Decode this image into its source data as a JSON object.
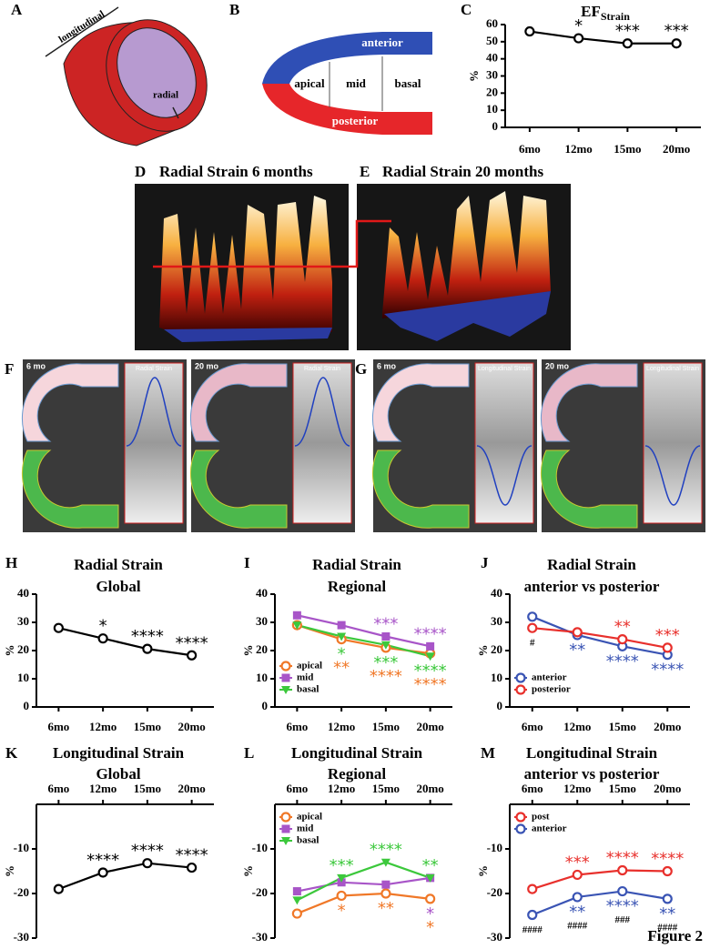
{
  "figure_label": "Figure 2",
  "diagrams": {
    "A": {
      "label": "A",
      "longitudinal": "longitudinal",
      "radial": "radial"
    },
    "B": {
      "label": "B",
      "anterior": "anterior",
      "apical": "apical",
      "mid": "mid",
      "basal": "basal",
      "posterior": "posterior"
    }
  },
  "images": {
    "D": {
      "label": "D",
      "title": "Radial Strain 6 months"
    },
    "E": {
      "label": "E",
      "title": "Radial Strain 20 months"
    },
    "F": {
      "label": "F",
      "panels": [
        {
          "time": "6 mo",
          "trace_title": "Radial Strain"
        },
        {
          "time": "20 mo",
          "trace_title": "Radial Strain"
        }
      ]
    },
    "G": {
      "label": "G",
      "panels": [
        {
          "time": "6 mo",
          "trace_title": "Longitudinal Strain"
        },
        {
          "time": "20 mo",
          "trace_title": "Longitudinal Strain"
        }
      ]
    }
  },
  "chart_data": [
    {
      "type": "line",
      "panel_label": "C",
      "title": [
        "EF"
      ],
      "title_subscript": "Strain",
      "ylabel": "%",
      "categories": [
        "6mo",
        "12mo",
        "15mo",
        "20mo"
      ],
      "ylim": [
        0,
        60
      ],
      "yticks": [
        0,
        10,
        20,
        30,
        40,
        50,
        60
      ],
      "x_axis_position": "bottom",
      "series": [
        {
          "name": "EF",
          "color": "#000000",
          "marker": "circle",
          "values": [
            56,
            52,
            49,
            49
          ],
          "annotations": [
            null,
            "*",
            "***",
            "***"
          ],
          "annotation_position": "above"
        }
      ]
    },
    {
      "type": "line",
      "panel_label": "H",
      "title": [
        "Radial Strain",
        "Global"
      ],
      "ylabel": "%",
      "categories": [
        "6mo",
        "12mo",
        "15mo",
        "20mo"
      ],
      "ylim": [
        0,
        40
      ],
      "yticks": [
        0,
        10,
        20,
        30,
        40
      ],
      "x_axis_position": "bottom",
      "series": [
        {
          "name": "global",
          "color": "#000000",
          "marker": "circle",
          "values": [
            28,
            24.3,
            20.6,
            18.3
          ],
          "annotations": [
            null,
            "*",
            "****",
            "****"
          ],
          "annotation_position": "above"
        }
      ]
    },
    {
      "type": "line",
      "panel_label": "I",
      "title": [
        "Radial Strain",
        "Regional"
      ],
      "ylabel": "%",
      "categories": [
        "6mo",
        "12mo",
        "15mo",
        "20mo"
      ],
      "ylim": [
        0,
        40
      ],
      "yticks": [
        0,
        10,
        20,
        30,
        40
      ],
      "x_axis_position": "bottom",
      "legend": "lower left",
      "series": [
        {
          "name": "apical",
          "color": "#f07828",
          "marker": "circle",
          "values": [
            29,
            24,
            21,
            19
          ],
          "annotations": [
            null,
            "**",
            "****",
            "****"
          ],
          "annotation_position": "below"
        },
        {
          "name": "mid",
          "color": "#a855c8",
          "marker": "square",
          "values": [
            32.5,
            29,
            25,
            21.5
          ],
          "annotations": [
            null,
            null,
            "***",
            "****"
          ],
          "annotation_position": "above"
        },
        {
          "name": "basal",
          "color": "#3cc83c",
          "marker": "triangle",
          "values": [
            29,
            25,
            22,
            18
          ],
          "annotations": [
            null,
            "*",
            "***",
            "****"
          ],
          "annotation_position": "below"
        }
      ]
    },
    {
      "type": "line",
      "panel_label": "J",
      "title": [
        "Radial Strain",
        "anterior vs posterior"
      ],
      "ylabel": "%",
      "categories": [
        "6mo",
        "12mo",
        "15mo",
        "20mo"
      ],
      "ylim": [
        0,
        40
      ],
      "yticks": [
        0,
        10,
        20,
        30,
        40
      ],
      "x_axis_position": "bottom",
      "legend": "lower left",
      "series": [
        {
          "name": "anterior",
          "color": "#3a54b4",
          "marker": "circle",
          "values": [
            32,
            25.5,
            21.5,
            18.5
          ],
          "annotations": [
            null,
            "**",
            "****",
            "****"
          ],
          "annotation_position": "below"
        },
        {
          "name": "posterior",
          "color": "#e8302c",
          "marker": "circle",
          "values": [
            28,
            26.5,
            24,
            21
          ],
          "annotations": [
            null,
            null,
            "**",
            "***"
          ],
          "annotation_position": "above"
        }
      ],
      "group_annotations": [
        "#",
        null,
        null,
        null
      ]
    },
    {
      "type": "line",
      "panel_label": "K",
      "title": [
        "Longitudinal Strain",
        "Global"
      ],
      "ylabel": "%",
      "categories": [
        "6mo",
        "12mo",
        "15mo",
        "20mo"
      ],
      "ylim": [
        -30,
        0
      ],
      "yticks": [
        -30,
        -20,
        -10
      ],
      "x_axis_position": "top",
      "series": [
        {
          "name": "global",
          "color": "#000000",
          "marker": "circle",
          "values": [
            -19,
            -15.3,
            -13.2,
            -14.2
          ],
          "annotations": [
            null,
            "****",
            "****",
            "****"
          ],
          "annotation_position": "above"
        }
      ]
    },
    {
      "type": "line",
      "panel_label": "L",
      "title": [
        "Longitudinal Strain",
        "Regional"
      ],
      "ylabel": "%",
      "categories": [
        "6mo",
        "12mo",
        "15mo",
        "20mo"
      ],
      "ylim": [
        -30,
        0
      ],
      "yticks": [
        -30,
        -20,
        -10
      ],
      "x_axis_position": "top",
      "legend": "upper left",
      "series": [
        {
          "name": "apical",
          "color": "#f07828",
          "marker": "circle",
          "values": [
            -24.5,
            -20.5,
            -20,
            -21.2
          ],
          "annotations": [
            null,
            "*",
            "**",
            "*"
          ],
          "annotation_position": "below"
        },
        {
          "name": "mid",
          "color": "#a855c8",
          "marker": "square",
          "values": [
            -19.5,
            -17.5,
            -18,
            -16.5
          ],
          "annotations": [
            null,
            null,
            null,
            "*"
          ],
          "annotation_position": "below"
        },
        {
          "name": "basal",
          "color": "#3cc83c",
          "marker": "triangle",
          "values": [
            -21.5,
            -16.5,
            -13,
            -16.5
          ],
          "annotations": [
            null,
            "***",
            "****",
            "**"
          ],
          "annotation_position": "above"
        }
      ]
    },
    {
      "type": "line",
      "panel_label": "M",
      "title": [
        "Longitudinal Strain",
        "anterior vs posterior"
      ],
      "ylabel": "%",
      "categories": [
        "6mo",
        "12mo",
        "15mo",
        "20mo"
      ],
      "ylim": [
        -30,
        0
      ],
      "yticks": [
        -30,
        -20,
        -10
      ],
      "x_axis_position": "top",
      "legend": "upper left",
      "series": [
        {
          "name": "post",
          "color": "#e8302c",
          "marker": "circle",
          "values": [
            -19,
            -15.8,
            -14.8,
            -15
          ],
          "annotations": [
            null,
            "***",
            "****",
            "****"
          ],
          "annotation_position": "above"
        },
        {
          "name": "anterior",
          "color": "#3a54b4",
          "marker": "circle",
          "values": [
            -24.8,
            -20.8,
            -19.5,
            -21.2
          ],
          "annotations": [
            null,
            "**",
            "****",
            "**"
          ],
          "annotation_position": "below"
        }
      ],
      "group_annotations": [
        "####",
        "####",
        "###",
        "####"
      ]
    }
  ]
}
